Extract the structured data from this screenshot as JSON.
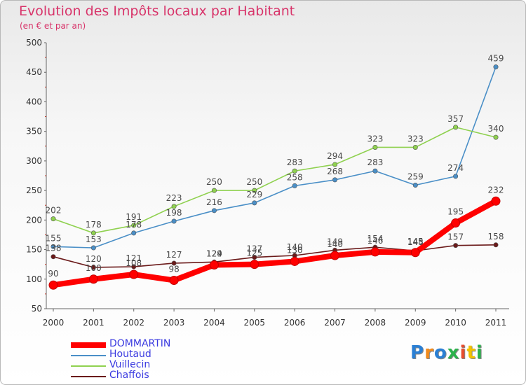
{
  "title": "Evolution des Impôts locaux par Habitant",
  "subtitle": "(en € et par an)",
  "logo": "Proxiti",
  "chart_data": {
    "type": "line",
    "categories": [
      "2000",
      "2001",
      "2002",
      "2003",
      "2004",
      "2005",
      "2006",
      "2007",
      "2008",
      "2009",
      "2010",
      "2011"
    ],
    "ylim": [
      50,
      500
    ],
    "yticks": [
      50,
      100,
      150,
      200,
      250,
      300,
      350,
      400,
      450,
      500
    ],
    "grid": false,
    "legend_position": "bottom-left",
    "series": [
      {
        "name": "DOMMARTIN",
        "color": "#ff0000",
        "values": [
          90,
          100,
          108,
          98,
          124,
          125,
          130,
          140,
          146,
          145,
          195,
          232
        ]
      },
      {
        "name": "Houtaud",
        "color": "#4a8fc7",
        "values": [
          155,
          153,
          178,
          198,
          216,
          229,
          258,
          268,
          283,
          259,
          274,
          459
        ]
      },
      {
        "name": "Vuillecin",
        "color": "#8fd14f",
        "values": [
          202,
          178,
          191,
          223,
          250,
          250,
          283,
          294,
          323,
          323,
          357,
          340
        ]
      },
      {
        "name": "Chaffois",
        "color": "#6b1a1a",
        "values": [
          138,
          120,
          121,
          127,
          129,
          137,
          140,
          149,
          154,
          148,
          157,
          158
        ]
      }
    ]
  }
}
